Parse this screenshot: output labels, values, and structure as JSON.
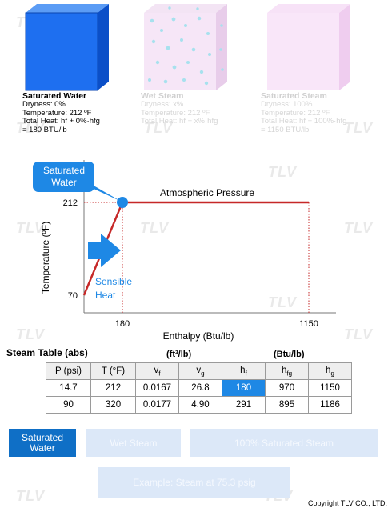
{
  "watermark": "TLV",
  "states": [
    {
      "title": "Saturated Water",
      "dryness": "Dryness: 0%",
      "temperature": "Temperature: 212 ºF",
      "total_heat": "Total Heat: hf + 0%·hfg",
      "result": "= 180 BTU/lb"
    },
    {
      "title": "Wet Steam",
      "dryness": "Dryness: x%",
      "temperature": "Temperature: 212 ºF",
      "total_heat": "Total Heat: hf + x%·hfg",
      "result": ""
    },
    {
      "title": "Saturated Steam",
      "dryness": "Dryness: 100%",
      "temperature": "Temperature: 212 ºF",
      "total_heat": "Total Heat: hf + 100%·hfg",
      "result": "= 1150 BTU/lb"
    }
  ],
  "chart": {
    "callout_line1": "Saturated",
    "callout_line2": "Water",
    "series_label": "Atmospheric Pressure",
    "sensible_line1": "Sensible",
    "sensible_line2": "Heat",
    "ylabel": "Temperature (ºF)",
    "xlabel": "Enthalpy (Btu/lb)",
    "x_ticks": [
      "180",
      "1150"
    ],
    "y_ticks": [
      "212",
      "70"
    ]
  },
  "chart_data": {
    "type": "line",
    "title": "",
    "xlabel": "Enthalpy (Btu/lb)",
    "ylabel": "Temperature (ºF)",
    "series": [
      {
        "name": "Atmospheric Pressure",
        "x": [
          0,
          180,
          1150
        ],
        "y": [
          70,
          212,
          212
        ]
      }
    ],
    "highlight_point": {
      "x": 180,
      "y": 212
    },
    "x_ticks": [
      180,
      1150
    ],
    "y_ticks": [
      70,
      212
    ],
    "grid": false,
    "colors": {
      "line": "#c62828",
      "point": "#1e88e5",
      "arrow": "#1e88e5"
    }
  },
  "table": {
    "title": "Steam Table (abs)",
    "unit_vol": "(ft³/lb)",
    "unit_enth": "(Btu/lb)",
    "headers": [
      "P (psi)",
      "T (°F)",
      "vf",
      "vg",
      "hf",
      "hfg",
      "hg"
    ],
    "rows": [
      [
        "14.7",
        "212",
        "0.0167",
        "26.8",
        "180",
        "970",
        "1150"
      ],
      [
        "90",
        "320",
        "0.0177",
        "4.90",
        "291",
        "895",
        "1186"
      ]
    ],
    "highlight": {
      "row": 0,
      "col": 4
    }
  },
  "buttons": {
    "saturated_water_line1": "Saturated",
    "saturated_water_line2": "Water",
    "wet_steam": "Wet Steam",
    "saturated_steam": "100% Saturated Steam",
    "example": "Example: Steam at 75.3 psig"
  },
  "copyright": "Copyright TLV CO., LTD.",
  "colors": {
    "active_button": "#0f6fc6",
    "idle_button": "#dce8f8",
    "cube_blue": "#1565e8",
    "curve_red": "#c62828"
  }
}
